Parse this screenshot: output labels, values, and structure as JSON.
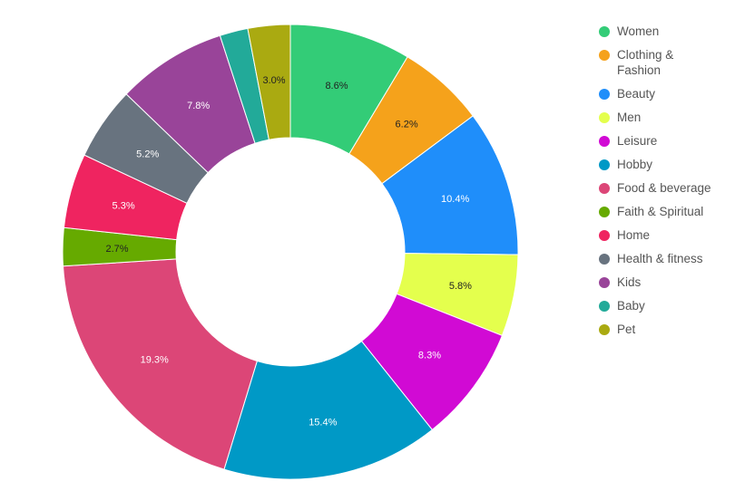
{
  "chart_data": {
    "type": "pie",
    "donut": true,
    "title": "",
    "legend_position": "right",
    "series": [
      {
        "name": "",
        "labels": [
          "Women",
          "Clothing & Fashion",
          "Beauty",
          "Men",
          "Leisure",
          "Hobby",
          "Food & beverage",
          "Faith & Spiritual",
          "Home",
          "Health & fitness",
          "Kids",
          "Baby",
          "Pet"
        ],
        "values": [
          8.6,
          6.2,
          10.4,
          5.8,
          8.3,
          15.4,
          19.3,
          2.7,
          5.3,
          5.2,
          7.8,
          2.0,
          3.0
        ],
        "data_labels": [
          "8.6%",
          "6.2%",
          "10.4%",
          "5.8%",
          "8.3%",
          "15.4%",
          "19.3%",
          "2.7%",
          "5.3%",
          "5.2%",
          "7.8%",
          "",
          "3.0%"
        ],
        "colors": [
          "#33cc77",
          "#f5a21b",
          "#1f8efa",
          "#e4ff4d",
          "#d10ad4",
          "#0099c6",
          "#dc4677",
          "#66aa00",
          "#ef2460",
          "#68737f",
          "#994499",
          "#22aa99",
          "#aaaa11"
        ]
      }
    ]
  },
  "legend": [
    {
      "label": "Women",
      "color": "#33cc77"
    },
    {
      "label": "Clothing & Fashion",
      "color": "#f5a21b"
    },
    {
      "label": "Beauty",
      "color": "#1f8efa"
    },
    {
      "label": "Men",
      "color": "#e4ff4d"
    },
    {
      "label": "Leisure",
      "color": "#d10ad4"
    },
    {
      "label": "Hobby",
      "color": "#0099c6"
    },
    {
      "label": "Food & beverage",
      "color": "#dc4677"
    },
    {
      "label": "Faith & Spiritual",
      "color": "#66aa00"
    },
    {
      "label": "Home",
      "color": "#ef2460"
    },
    {
      "label": "Health & fitness",
      "color": "#68737f"
    },
    {
      "label": "Kids",
      "color": "#994499"
    },
    {
      "label": "Baby",
      "color": "#22aa99"
    },
    {
      "label": "Pet",
      "color": "#aaaa11"
    }
  ]
}
